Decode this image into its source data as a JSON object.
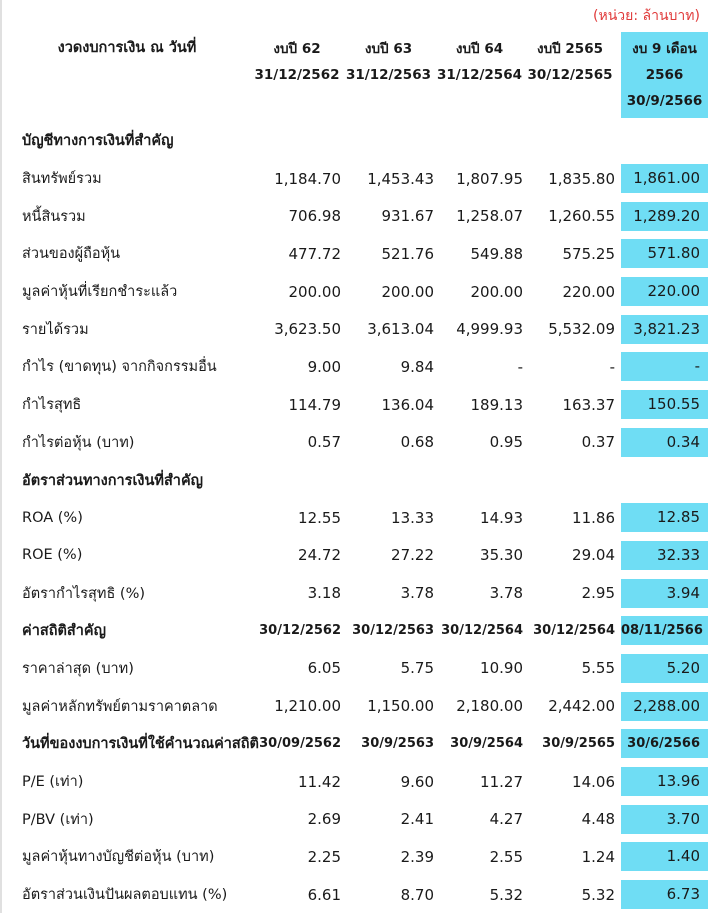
{
  "unit_label": "(หน่วย: ล้านบาท)",
  "colors": {
    "highlight": "#6FDDF4",
    "unit_red": "#E03A3A",
    "text": "#1A1A1A",
    "left_border": "#E0E0E0"
  },
  "header": {
    "label": "งวดงบการเงิน ณ วันที่",
    "columns": [
      {
        "highlight": false,
        "lines": [
          "งบปี 62",
          "31/12/2562"
        ]
      },
      {
        "highlight": false,
        "lines": [
          "งบปี 63",
          "31/12/2563"
        ]
      },
      {
        "highlight": false,
        "lines": [
          "งบปี 64",
          "31/12/2564"
        ]
      },
      {
        "highlight": false,
        "lines": [
          "งบปี 2565",
          "30/12/2565"
        ]
      },
      {
        "highlight": true,
        "lines": [
          "งบ 9 เดือน",
          "2566",
          "30/9/2566"
        ]
      }
    ]
  },
  "rows": [
    {
      "type": "section",
      "label": "บัญชีทางการเงินที่สำคัญ"
    },
    {
      "type": "data",
      "label": "สินทรัพย์รวม",
      "values": [
        "1,184.70",
        "1,453.43",
        "1,807.95",
        "1,835.80",
        "1,861.00"
      ]
    },
    {
      "type": "data",
      "label": "หนี้สินรวม",
      "values": [
        "706.98",
        "931.67",
        "1,258.07",
        "1,260.55",
        "1,289.20"
      ]
    },
    {
      "type": "data",
      "label": "ส่วนของผู้ถือหุ้น",
      "values": [
        "477.72",
        "521.76",
        "549.88",
        "575.25",
        "571.80"
      ]
    },
    {
      "type": "data",
      "label": "มูลค่าหุ้นที่เรียกชำระแล้ว",
      "values": [
        "200.00",
        "200.00",
        "200.00",
        "220.00",
        "220.00"
      ]
    },
    {
      "type": "data",
      "label": "รายได้รวม",
      "values": [
        "3,623.50",
        "3,613.04",
        "4,999.93",
        "5,532.09",
        "3,821.23"
      ]
    },
    {
      "type": "data",
      "label": "กำไร (ขาดทุน) จากกิจกรรมอื่น",
      "values": [
        "9.00",
        "9.84",
        "-",
        "-",
        "-"
      ]
    },
    {
      "type": "data",
      "label": "กำไรสุทธิ",
      "values": [
        "114.79",
        "136.04",
        "189.13",
        "163.37",
        "150.55"
      ]
    },
    {
      "type": "data",
      "label": "กำไรต่อหุ้น (บาท)",
      "values": [
        "0.57",
        "0.68",
        "0.95",
        "0.37",
        "0.34"
      ]
    },
    {
      "type": "section",
      "label": "อัตราส่วนทางการเงินที่สำคัญ"
    },
    {
      "type": "data",
      "label": "ROA (%)",
      "values": [
        "12.55",
        "13.33",
        "14.93",
        "11.86",
        "12.85"
      ]
    },
    {
      "type": "data",
      "label": "ROE (%)",
      "values": [
        "24.72",
        "27.22",
        "35.30",
        "29.04",
        "32.33"
      ]
    },
    {
      "type": "data",
      "label": "อัตรากำไรสุทธิ (%)",
      "values": [
        "3.18",
        "3.78",
        "3.78",
        "2.95",
        "3.94"
      ]
    },
    {
      "type": "dates",
      "label": "ค่าสถิติสำคัญ",
      "values": [
        "30/12/2562",
        "30/12/2563",
        "30/12/2564",
        "30/12/2564",
        "08/11/2566"
      ]
    },
    {
      "type": "data",
      "label": "ราคาล่าสุด (บาท)",
      "values": [
        "6.05",
        "5.75",
        "10.90",
        "5.55",
        "5.20"
      ]
    },
    {
      "type": "data",
      "label": "มูลค่าหลักทรัพย์ตามราคาตลาด",
      "values": [
        "1,210.00",
        "1,150.00",
        "2,180.00",
        "2,442.00",
        "2,288.00"
      ]
    },
    {
      "type": "dates",
      "label": "วันที่ของงบการเงินที่ใช้คำนวณค่าสถิติ",
      "values": [
        "30/09/2562",
        "30/9/2563",
        "30/9/2564",
        "30/9/2565",
        "30/6/2566"
      ]
    },
    {
      "type": "data",
      "label": "P/E (เท่า)",
      "values": [
        "11.42",
        "9.60",
        "11.27",
        "14.06",
        "13.96"
      ]
    },
    {
      "type": "data",
      "label": "P/BV (เท่า)",
      "values": [
        "2.69",
        "2.41",
        "4.27",
        "4.48",
        "3.70"
      ]
    },
    {
      "type": "data",
      "label": "มูลค่าหุ้นทางบัญชีต่อหุ้น (บาท)",
      "values": [
        "2.25",
        "2.39",
        "2.55",
        "1.24",
        "1.40"
      ]
    },
    {
      "type": "data",
      "label": "อัตราส่วนเงินปันผลตอบแทน (%)",
      "values": [
        "6.61",
        "8.70",
        "5.32",
        "5.32",
        "6.73"
      ]
    }
  ]
}
